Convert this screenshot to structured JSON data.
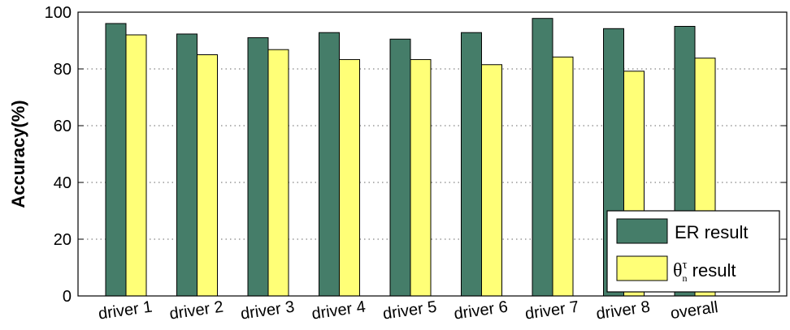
{
  "chart_data": {
    "type": "bar",
    "title": "",
    "xlabel": "",
    "ylabel": "Accuracy(%)",
    "ylim": [
      0,
      100
    ],
    "yticks": [
      0,
      20,
      40,
      60,
      80,
      100
    ],
    "grid": true,
    "legend_position": "bottom-right",
    "categories": [
      "driver 1",
      "driver 2",
      "driver 3",
      "driver 4",
      "driver 5",
      "driver 6",
      "driver 7",
      "driver 8",
      "overall"
    ],
    "series": [
      {
        "name": "ER result",
        "color": "#457d69",
        "values": [
          96,
          92.3,
          91,
          92.8,
          90.5,
          92.8,
          97.8,
          94.2,
          95
        ]
      },
      {
        "name": "θτn result",
        "name_parts": {
          "symbol": "θ",
          "sup": "τ",
          "sub": "n",
          "suffix": " result"
        },
        "color": "#ffff77",
        "values": [
          92,
          85,
          86.8,
          83.3,
          83.3,
          81.5,
          84.2,
          79.2,
          83.8
        ]
      }
    ]
  }
}
